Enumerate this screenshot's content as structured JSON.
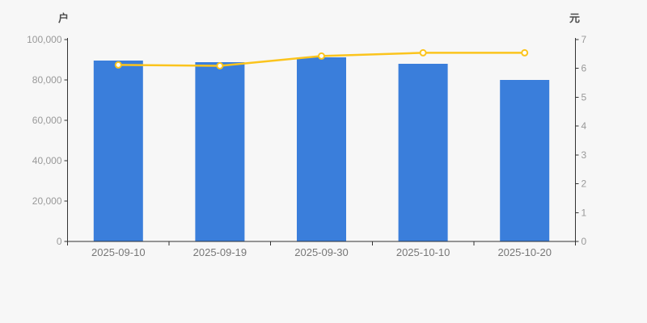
{
  "page": {
    "background": "#f7f7f7"
  },
  "chart_data": {
    "type": "combo",
    "categories": [
      "2025-09-10",
      "2025-09-19",
      "2025-09-30",
      "2025-10-10",
      "2025-10-20"
    ],
    "series": [
      {
        "type": "bar",
        "axis": "left",
        "unit": "户",
        "color": "#3a7edb",
        "values": [
          89600,
          88800,
          91200,
          88000,
          80000
        ]
      },
      {
        "type": "line",
        "axis": "right",
        "unit": "元",
        "color": "#fbc41d",
        "marker_fill": "#ffffff",
        "values": [
          6.12,
          6.09,
          6.43,
          6.54,
          6.54
        ]
      }
    ],
    "left_axis": {
      "title": "户",
      "min": 0,
      "max": 100000,
      "tick_step": 20000,
      "tick_labels": [
        "0",
        "20,000",
        "40,000",
        "60,000",
        "80,000",
        "100,000"
      ]
    },
    "right_axis": {
      "title": "元",
      "min": 0,
      "max": 7,
      "tick_step": 1,
      "tick_labels": [
        "0",
        "1",
        "2",
        "3",
        "4",
        "5",
        "6",
        "7"
      ]
    },
    "grid": false,
    "legend_position": "none",
    "title": "",
    "colors": {
      "axis_line": "#333333",
      "tick_label": "#999999",
      "x_label": "#777777",
      "axis_title": "#4d4d4d"
    }
  }
}
